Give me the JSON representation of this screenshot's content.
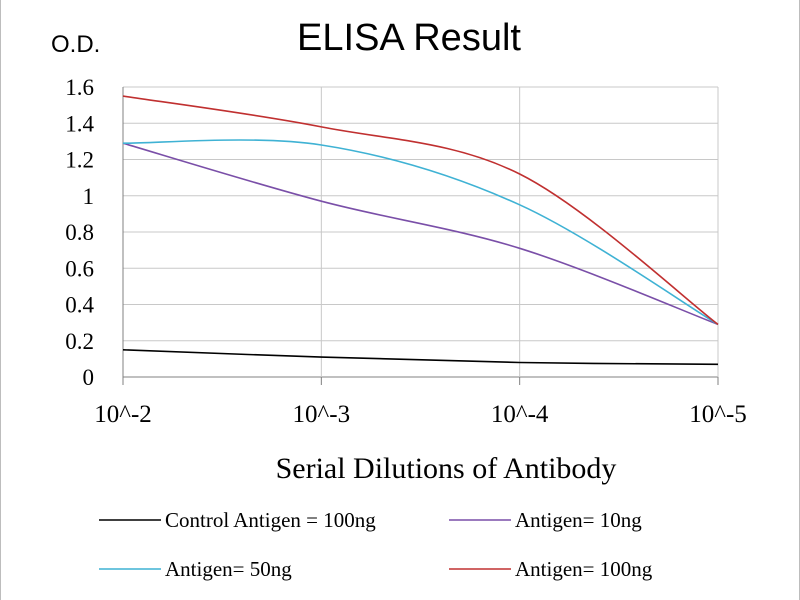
{
  "chart_data": {
    "type": "line",
    "title": "ELISA Result",
    "ylabel": "O.D.",
    "xlabel": "Serial Dilutions of Antibody",
    "x_tick_labels": [
      "10^-2",
      "10^-3",
      "10^-4",
      "10^-5"
    ],
    "x": [
      1,
      2,
      3,
      4
    ],
    "y_tick_labels": [
      "0",
      "0.2",
      "0.4",
      "0.6",
      "0.8",
      "1",
      "1.2",
      "1.4",
      "1.6"
    ],
    "ylim": [
      0,
      1.6
    ],
    "grid": true,
    "legend_position": "bottom",
    "series": [
      {
        "name": "Control Antigen = 100ng",
        "color": "#000000",
        "values": [
          0.15,
          0.11,
          0.08,
          0.07
        ]
      },
      {
        "name": "Antigen= 10ng",
        "color": "#7a4fa8",
        "values": [
          1.29,
          0.97,
          0.71,
          0.29
        ]
      },
      {
        "name": "Antigen= 50ng",
        "color": "#3fb2d4",
        "values": [
          1.29,
          1.28,
          0.95,
          0.29
        ]
      },
      {
        "name": "Antigen= 100ng",
        "color": "#c03030",
        "values": [
          1.55,
          1.38,
          1.12,
          0.29
        ]
      }
    ]
  }
}
